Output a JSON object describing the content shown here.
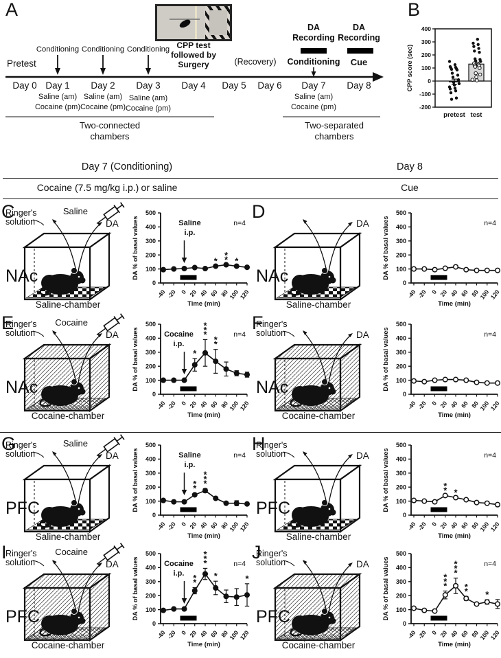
{
  "figure": {
    "panel_a": {
      "label": "A",
      "pretest": "Pretest",
      "conditioning": "Conditioning",
      "cpp_test_lines": [
        "CPP test",
        "followed by",
        "Surgery"
      ],
      "recovery": "(Recovery)",
      "da": "DA",
      "recording": "Recording",
      "conditioning_day7": "Conditioning",
      "cue": "Cue",
      "days": [
        "Day 0",
        "Day 1",
        "Day 2",
        "Day 3",
        "Day 4",
        "Day 5",
        "Day 6",
        "Day 7",
        "Day 8"
      ],
      "saline_am": "Saline (am)",
      "cocaine_pm": "Cocaine (pm)",
      "two_connected_lines": [
        "Two-connected",
        "chambers"
      ],
      "two_separated_lines": [
        "Two-separated",
        "chambers"
      ]
    },
    "panel_b_label": "B",
    "section_headers": {
      "day7": "Day 7 (Conditioning)",
      "day8": "Day 8",
      "treatment": "Cocaine (7.5 mg/kg i.p.)",
      "or_saline": "or saline",
      "cue": "Cue"
    },
    "shared_chart": {
      "ylabel": "DA % of basal values",
      "xlabel": "Time (min)",
      "n_label": "n=4"
    },
    "illustration_labels": {
      "ringers_lines": [
        "Ringer's",
        "solution"
      ],
      "da": "DA"
    },
    "panels": [
      {
        "label": "C",
        "region": "NAc",
        "chamber": "Saline-chamber",
        "hatched": false,
        "ringers": true,
        "drug": "Saline",
        "chart": "C"
      },
      {
        "label": "D",
        "region": "NAc",
        "chamber": "Saline-chamber",
        "hatched": false,
        "ringers": false,
        "drug": null,
        "chart": "D"
      },
      {
        "label": "E",
        "region": "NAc",
        "chamber": "Cocaine-chamber",
        "hatched": true,
        "ringers": true,
        "drug": "Cocaine",
        "chart": "E"
      },
      {
        "label": "F",
        "region": "NAc",
        "chamber": "Cocaine-chamber",
        "hatched": true,
        "ringers": true,
        "drug": null,
        "chart": "F"
      },
      {
        "label": "G",
        "region": "PFC",
        "chamber": "Saline-chamber",
        "hatched": false,
        "ringers": true,
        "drug": "Saline",
        "chart": "G"
      },
      {
        "label": "H",
        "region": "PFC",
        "chamber": "Saline-chamber",
        "hatched": false,
        "ringers": true,
        "drug": null,
        "chart": "H"
      },
      {
        "label": "I",
        "region": "PFC",
        "chamber": "Cocaine-chamber",
        "hatched": true,
        "ringers": true,
        "drug": "Cocaine",
        "chart": "I"
      },
      {
        "label": "J",
        "region": "PFC",
        "chamber": "Cocaine-chamber",
        "hatched": true,
        "ringers": true,
        "drug": null,
        "chart": "J"
      }
    ]
  },
  "chart_data": [
    {
      "id": "B",
      "type": "bar-scatter",
      "ylabel": "CPP score (sec)",
      "ylim": [
        -200,
        400
      ],
      "yticks": [
        -200,
        -100,
        0,
        100,
        200,
        300,
        400
      ],
      "categories": [
        "pretest",
        "test"
      ],
      "pretest": {
        "mean": -5,
        "err": 20,
        "points": [
          150,
          125,
          110,
          105,
          100,
          95,
          90,
          85,
          60,
          45,
          30,
          10,
          -10,
          -20,
          -30,
          -45,
          -55,
          -60,
          -75,
          -90,
          -130,
          -140
        ]
      },
      "test": {
        "bar": 130,
        "err": 15,
        "bar_fill": "#d8d8d8",
        "points_filled": [
          320,
          290,
          280,
          265,
          250,
          230,
          220,
          170,
          165,
          155,
          150
        ],
        "points_open": [
          135,
          125,
          120,
          115,
          110,
          100,
          60,
          50,
          30,
          10,
          5
        ]
      }
    },
    {
      "id": "C",
      "type": "line",
      "marker": "filled",
      "x": [
        -40,
        -20,
        0,
        20,
        40,
        60,
        80,
        100,
        120
      ],
      "values": [
        95,
        100,
        103,
        110,
        103,
        120,
        130,
        120,
        112
      ],
      "err": [
        5,
        5,
        5,
        5,
        5,
        6,
        6,
        6,
        5
      ],
      "sig": {
        "5": "*",
        "6": "**",
        "7": "*"
      },
      "annotation": [
        "Saline",
        "i.p."
      ],
      "ann_dx": 8,
      "injection_bar": [
        0,
        20
      ],
      "ylim": [
        0,
        500
      ]
    },
    {
      "id": "D",
      "type": "line",
      "marker": "open",
      "x": [
        -40,
        -20,
        0,
        20,
        40,
        60,
        80,
        100,
        120
      ],
      "values": [
        100,
        100,
        95,
        105,
        115,
        95,
        90,
        90,
        90
      ],
      "err": [
        4,
        4,
        4,
        4,
        4,
        4,
        4,
        4,
        4
      ],
      "sig": {},
      "injection_bar": [
        0,
        20
      ],
      "ylim": [
        0,
        500
      ]
    },
    {
      "id": "E",
      "type": "line",
      "marker": "filled",
      "x": [
        -40,
        -20,
        0,
        20,
        40,
        60,
        80,
        100,
        120
      ],
      "values": [
        100,
        100,
        100,
        210,
        295,
        235,
        180,
        150,
        140
      ],
      "err": [
        4,
        4,
        4,
        45,
        95,
        85,
        50,
        18,
        18
      ],
      "sig": {
        "3": "*",
        "4": "***",
        "5": "**"
      },
      "annotation": [
        "Cocaine",
        "i.p."
      ],
      "ann_dx": -8,
      "injection_bar": [
        0,
        20
      ],
      "ylim": [
        0,
        500
      ]
    },
    {
      "id": "F",
      "type": "line",
      "marker": "open",
      "x": [
        -40,
        -20,
        0,
        20,
        40,
        60,
        80,
        100,
        120
      ],
      "values": [
        95,
        90,
        100,
        105,
        105,
        100,
        85,
        80,
        80
      ],
      "err": [
        4,
        4,
        4,
        4,
        4,
        4,
        4,
        4,
        4
      ],
      "sig": {},
      "injection_bar": [
        0,
        20
      ],
      "ylim": [
        0,
        500
      ]
    },
    {
      "id": "G",
      "type": "line",
      "marker": "filled",
      "x": [
        -40,
        -20,
        0,
        20,
        40,
        60,
        80,
        100,
        120
      ],
      "values": [
        105,
        95,
        95,
        145,
        175,
        120,
        85,
        85,
        80
      ],
      "err": [
        5,
        5,
        5,
        9,
        14,
        6,
        5,
        18,
        6
      ],
      "sig": {
        "3": "**",
        "4": "***"
      },
      "annotation": [
        "Saline",
        "i.p."
      ],
      "ann_dx": 8,
      "injection_bar": [
        0,
        20
      ],
      "ylim": [
        0,
        500
      ]
    },
    {
      "id": "H",
      "type": "line",
      "marker": "open",
      "x": [
        -40,
        -20,
        0,
        20,
        40,
        60,
        80,
        100,
        120
      ],
      "values": [
        105,
        100,
        95,
        140,
        125,
        110,
        90,
        85,
        75
      ],
      "err": [
        5,
        5,
        5,
        8,
        8,
        5,
        5,
        5,
        10
      ],
      "sig": {
        "3": "**",
        "4": "*"
      },
      "injection_bar": [
        0,
        20
      ],
      "ylim": [
        0,
        500
      ]
    },
    {
      "id": "I",
      "type": "line",
      "marker": "filled",
      "x": [
        -40,
        -20,
        0,
        20,
        40,
        60,
        80,
        100,
        120
      ],
      "values": [
        95,
        105,
        105,
        235,
        355,
        255,
        195,
        190,
        205
      ],
      "err": [
        4,
        4,
        4,
        22,
        40,
        48,
        45,
        60,
        80
      ],
      "sig": {
        "3": "**",
        "4": "***",
        "5": "*",
        "8": "*"
      },
      "annotation": [
        "Cocaine",
        "i.p."
      ],
      "ann_dx": -8,
      "injection_bar": [
        0,
        20
      ],
      "ylim": [
        0,
        500
      ]
    },
    {
      "id": "J",
      "type": "line",
      "marker": "open",
      "x": [
        -40,
        -20,
        0,
        20,
        40,
        60,
        80,
        100,
        120
      ],
      "values": [
        110,
        95,
        90,
        205,
        270,
        180,
        140,
        155,
        140
      ],
      "err": [
        9,
        10,
        6,
        28,
        55,
        14,
        6,
        16,
        32
      ],
      "sig": {
        "3": "***",
        "4": "***",
        "5": "**",
        "7": "*"
      },
      "injection_bar": [
        0,
        20
      ],
      "ylim": [
        0,
        500
      ]
    }
  ]
}
